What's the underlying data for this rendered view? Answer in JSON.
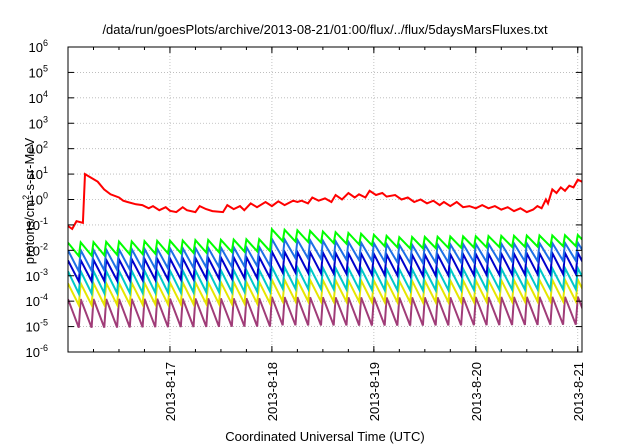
{
  "chart_data": {
    "type": "line",
    "title": "/data/run/goesPlots/archive/2013-08-21/01:00/flux/../flux/5daysMarsFluxes.txt",
    "xlabel": "Coordinated Universal Time (UTC)",
    "ylabel_parts": [
      "protons/cm",
      "2",
      "-s-sr-MeV"
    ],
    "x_scale": "date",
    "xlim": [
      "2013-08-16 00:00",
      "2013-08-21 01:00"
    ],
    "y_scale": "log",
    "ylim": [
      1e-06,
      1000000.0
    ],
    "x_ticks": [
      "2013-8-17",
      "2013-8-18",
      "2013-8-19",
      "2013-8-20",
      "2013-8-21"
    ],
    "y_ticks": [
      {
        "value": 1e-06,
        "base": "10",
        "exp": "-6"
      },
      {
        "value": 1e-05,
        "base": "10",
        "exp": "-5"
      },
      {
        "value": 0.0001,
        "base": "10",
        "exp": "-4"
      },
      {
        "value": 0.001,
        "base": "10",
        "exp": "-3"
      },
      {
        "value": 0.01,
        "base": "10",
        "exp": "-2"
      },
      {
        "value": 0.1,
        "base": "10",
        "exp": "-1"
      },
      {
        "value": 1.0,
        "base": "10",
        "exp": "0"
      },
      {
        "value": 10.0,
        "base": "10",
        "exp": "1"
      },
      {
        "value": 100.0,
        "base": "10",
        "exp": "2"
      },
      {
        "value": 1000.0,
        "base": "10",
        "exp": "3"
      },
      {
        "value": 10000.0,
        "base": "10",
        "exp": "4"
      },
      {
        "value": 100000.0,
        "base": "10",
        "exp": "5"
      },
      {
        "value": 1000000.0,
        "base": "10",
        "exp": "6"
      }
    ],
    "grid": true,
    "series": [
      {
        "color": "#ff0000",
        "points": [
          [
            "2013-08-16 00:00",
            0.09
          ],
          [
            "2013-08-16 01:00",
            0.07
          ],
          [
            "2013-08-16 02:00",
            0.14
          ],
          [
            "2013-08-16 03:30",
            0.12
          ],
          [
            "2013-08-16 04:00",
            10
          ],
          [
            "2013-08-16 07:00",
            5
          ],
          [
            "2013-08-16 08:30",
            2.5
          ],
          [
            "2013-08-16 10:00",
            1.6
          ],
          [
            "2013-08-16 12:00",
            1.2
          ],
          [
            "2013-08-16 13:00",
            0.9
          ],
          [
            "2013-08-16 14:00",
            0.8
          ],
          [
            "2013-08-16 16:00",
            0.65
          ],
          [
            "2013-08-16 17:30",
            0.6
          ],
          [
            "2013-08-16 19:00",
            0.45
          ],
          [
            "2013-08-16 20:00",
            0.55
          ],
          [
            "2013-08-16 21:30",
            0.38
          ],
          [
            "2013-08-16 23:00",
            0.5
          ],
          [
            "2013-08-17 00:00",
            0.36
          ],
          [
            "2013-08-17 01:30",
            0.32
          ],
          [
            "2013-08-17 03:00",
            0.5
          ],
          [
            "2013-08-17 04:00",
            0.38
          ],
          [
            "2013-08-17 06:00",
            0.32
          ],
          [
            "2013-08-17 07:00",
            0.55
          ],
          [
            "2013-08-17 08:30",
            0.42
          ],
          [
            "2013-08-17 10:00",
            0.35
          ],
          [
            "2013-08-17 12:30",
            0.32
          ],
          [
            "2013-08-17 13:30",
            0.6
          ],
          [
            "2013-08-17 15:00",
            0.42
          ],
          [
            "2013-08-17 16:30",
            0.55
          ],
          [
            "2013-08-17 17:30",
            0.38
          ],
          [
            "2013-08-17 19:00",
            0.7
          ],
          [
            "2013-08-17 20:30",
            0.5
          ],
          [
            "2013-08-17 22:30",
            0.8
          ],
          [
            "2013-08-18 00:00",
            0.55
          ],
          [
            "2013-08-18 01:30",
            0.85
          ],
          [
            "2013-08-18 03:00",
            0.6
          ],
          [
            "2013-08-18 05:00",
            0.9
          ],
          [
            "2013-08-18 06:00",
            0.8
          ],
          [
            "2013-08-18 07:00",
            0.9
          ],
          [
            "2013-08-18 08:30",
            0.7
          ],
          [
            "2013-08-18 09:30",
            1.2
          ],
          [
            "2013-08-18 11:00",
            0.9
          ],
          [
            "2013-08-18 12:30",
            1.1
          ],
          [
            "2013-08-18 14:00",
            0.8
          ],
          [
            "2013-08-18 15:00",
            1.5
          ],
          [
            "2013-08-18 16:30",
            1.0
          ],
          [
            "2013-08-18 18:00",
            1.8
          ],
          [
            "2013-08-18 19:30",
            1.2
          ],
          [
            "2013-08-18 20:30",
            1.6
          ],
          [
            "2013-08-18 22:00",
            1.2
          ],
          [
            "2013-08-18 23:00",
            2.2
          ],
          [
            "2013-08-19 00:30",
            1.5
          ],
          [
            "2013-08-19 02:00",
            1.8
          ],
          [
            "2013-08-19 03:00",
            1.3
          ],
          [
            "2013-08-19 05:00",
            1.5
          ],
          [
            "2013-08-19 06:30",
            1.0
          ],
          [
            "2013-08-19 08:00",
            1.2
          ],
          [
            "2013-08-19 09:30",
            0.8
          ],
          [
            "2013-08-19 11:00",
            1.0
          ],
          [
            "2013-08-19 12:30",
            0.7
          ],
          [
            "2013-08-19 14:00",
            0.9
          ],
          [
            "2013-08-19 15:30",
            0.6
          ],
          [
            "2013-08-19 16:30",
            0.8
          ],
          [
            "2013-08-19 18:00",
            0.55
          ],
          [
            "2013-08-19 19:30",
            0.8
          ],
          [
            "2013-08-19 21:00",
            0.5
          ],
          [
            "2013-08-19 22:30",
            0.55
          ],
          [
            "2013-08-20 00:00",
            0.45
          ],
          [
            "2013-08-20 01:30",
            0.6
          ],
          [
            "2013-08-20 03:00",
            0.45
          ],
          [
            "2013-08-20 04:30",
            0.55
          ],
          [
            "2013-08-20 06:00",
            0.4
          ],
          [
            "2013-08-20 07:30",
            0.5
          ],
          [
            "2013-08-20 09:00",
            0.35
          ],
          [
            "2013-08-20 10:30",
            0.45
          ],
          [
            "2013-08-20 12:00",
            0.32
          ],
          [
            "2013-08-20 13:30",
            0.4
          ],
          [
            "2013-08-20 14:30",
            0.55
          ],
          [
            "2013-08-20 15:30",
            0.45
          ],
          [
            "2013-08-20 16:30",
            1.0
          ],
          [
            "2013-08-20 17:00",
            0.7
          ],
          [
            "2013-08-20 18:00",
            2.5
          ],
          [
            "2013-08-20 19:00",
            1.8
          ],
          [
            "2013-08-20 20:00",
            3.0
          ],
          [
            "2013-08-20 21:00",
            2.2
          ],
          [
            "2013-08-20 22:00",
            3.5
          ],
          [
            "2013-08-20 23:00",
            3.0
          ],
          [
            "2013-08-21 00:00",
            6.0
          ],
          [
            "2013-08-21 01:00",
            5.0
          ]
        ]
      },
      {
        "color": "#00ff00",
        "sawtooth": {
          "start": "2013-08-16 00:00",
          "end": "2013-08-21 01:00",
          "period_hours": 3,
          "high_a": 0.02,
          "high_b": 0.04,
          "low_a": 0.006,
          "low_b": 0.015,
          "bump_start": "2013-08-18 00:00",
          "bump_end": "2013-08-19 06:00",
          "bump_factor": 2.4
        }
      },
      {
        "color": "#1e6fe6",
        "sawtooth": {
          "start": "2013-08-16 00:00",
          "end": "2013-08-21 01:00",
          "period_hours": 3,
          "high_a": 0.01,
          "high_b": 0.02,
          "low_a": 0.0015,
          "low_b": 0.004,
          "bump_start": "2013-08-18 00:00",
          "bump_end": "2013-08-19 06:00",
          "bump_factor": 2.0
        }
      },
      {
        "color": "#0000cc",
        "sawtooth": {
          "start": "2013-08-16 00:00",
          "end": "2013-08-21 01:00",
          "period_hours": 3,
          "high_a": 0.004,
          "high_b": 0.008,
          "low_a": 0.0006,
          "low_b": 0.0012,
          "bump_start": "2013-08-18 00:00",
          "bump_end": "2013-08-19 06:00",
          "bump_factor": 1.6
        }
      },
      {
        "color": "#00c8c8",
        "sawtooth": {
          "start": "2013-08-16 00:00",
          "end": "2013-08-21 01:00",
          "period_hours": 3,
          "high_a": 0.0015,
          "high_b": 0.002,
          "low_a": 0.0002,
          "low_b": 0.0003,
          "bump_start": "2013-08-18 00:00",
          "bump_end": "2013-08-19 06:00",
          "bump_factor": 1.3
        }
      },
      {
        "color": "#e6e600",
        "sawtooth": {
          "start": "2013-08-16 00:00",
          "end": "2013-08-21 01:00",
          "period_hours": 3,
          "high_a": 0.0005,
          "high_b": 0.0007,
          "low_a": 7e-05,
          "low_b": 0.0001,
          "bump_start": "2013-08-18 00:00",
          "bump_end": "2013-08-19 06:00",
          "bump_factor": 1.2
        }
      },
      {
        "color": "#a03c78",
        "sawtooth": {
          "start": "2013-08-16 00:00",
          "end": "2013-08-21 01:00",
          "period_hours": 3,
          "high_a": 0.00012,
          "high_b": 0.00015,
          "low_a": 9e-06,
          "low_b": 1.2e-05,
          "bump_start": "2013-08-18 00:00",
          "bump_end": "2013-08-19 06:00",
          "bump_factor": 1.1
        }
      }
    ]
  }
}
